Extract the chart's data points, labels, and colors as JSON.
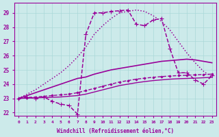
{
  "bg_color": "#cceaea",
  "line_color": "#990099",
  "grid_color": "#aad8d8",
  "xlabel": "Windchill (Refroidissement éolien,°C)",
  "xlim": [
    -0.5,
    23.5
  ],
  "ylim": [
    21.8,
    29.7
  ],
  "yticks": [
    22,
    23,
    24,
    25,
    26,
    27,
    28,
    29
  ],
  "xticks": [
    0,
    1,
    2,
    3,
    4,
    5,
    6,
    7,
    8,
    9,
    10,
    11,
    12,
    13,
    14,
    15,
    16,
    17,
    18,
    19,
    20,
    21,
    22,
    23
  ],
  "series": [
    {
      "x": [
        0,
        1,
        2,
        3,
        4,
        5,
        6,
        7,
        8,
        9,
        10,
        11,
        12,
        13,
        14,
        15,
        16,
        17,
        18,
        19,
        20,
        21,
        22,
        23
      ],
      "y": [
        23.0,
        23.3,
        23.6,
        24.0,
        24.4,
        24.8,
        25.3,
        25.9,
        26.6,
        27.5,
        28.1,
        28.6,
        29.0,
        29.1,
        29.2,
        29.1,
        28.8,
        28.4,
        27.8,
        27.0,
        26.2,
        25.5,
        24.9,
        24.5
      ],
      "style": "dotted",
      "marker": null,
      "lw": 1.1
    },
    {
      "x": [
        0,
        1,
        2,
        3,
        4,
        5,
        6,
        7,
        8,
        9,
        10,
        11,
        12,
        13,
        14,
        15,
        16,
        17,
        18,
        19,
        20,
        21,
        22,
        23
      ],
      "y": [
        23.0,
        23.1,
        23.0,
        23.1,
        22.8,
        22.6,
        22.5,
        21.9,
        27.5,
        29.0,
        29.0,
        29.1,
        29.15,
        29.2,
        28.2,
        28.1,
        28.5,
        28.6,
        26.5,
        24.8,
        24.8,
        24.3,
        24.0,
        24.6
      ],
      "style": "dashed",
      "marker": "+",
      "ms": 4,
      "lw": 1.1
    },
    {
      "x": [
        0,
        1,
        2,
        3,
        4,
        5,
        6,
        7,
        8,
        9,
        10,
        11,
        12,
        13,
        14,
        15,
        16,
        17,
        18,
        19,
        20,
        21,
        22,
        23
      ],
      "y": [
        23.0,
        23.2,
        23.4,
        23.6,
        23.8,
        24.0,
        24.2,
        24.4,
        24.5,
        24.7,
        24.85,
        25.0,
        25.1,
        25.2,
        25.3,
        25.4,
        25.5,
        25.6,
        25.65,
        25.7,
        25.75,
        25.7,
        25.6,
        25.5
      ],
      "style": "solid",
      "marker": null,
      "lw": 1.2
    },
    {
      "x": [
        0,
        1,
        2,
        3,
        4,
        5,
        6,
        7,
        8,
        9,
        10,
        11,
        12,
        13,
        14,
        15,
        16,
        17,
        18,
        19,
        20,
        21,
        22,
        23
      ],
      "y": [
        23.0,
        23.05,
        23.1,
        23.15,
        23.2,
        23.25,
        23.3,
        23.4,
        23.55,
        23.7,
        23.85,
        24.0,
        24.15,
        24.25,
        24.35,
        24.42,
        24.48,
        24.53,
        24.57,
        24.6,
        24.62,
        24.65,
        24.68,
        24.7
      ],
      "style": "dashed",
      "marker": "D",
      "ms": 1.5,
      "lw": 1.0
    },
    {
      "x": [
        0,
        1,
        2,
        3,
        4,
        5,
        6,
        7,
        8,
        9,
        10,
        11,
        12,
        13,
        14,
        15,
        16,
        17,
        18,
        19,
        20,
        21,
        22,
        23
      ],
      "y": [
        23.0,
        23.02,
        23.04,
        23.06,
        23.08,
        23.1,
        23.15,
        23.2,
        23.3,
        23.45,
        23.6,
        23.75,
        23.9,
        24.0,
        24.1,
        24.18,
        24.25,
        24.3,
        24.35,
        24.38,
        24.4,
        24.42,
        24.45,
        24.48
      ],
      "style": "solid",
      "marker": null,
      "lw": 1.0
    }
  ]
}
